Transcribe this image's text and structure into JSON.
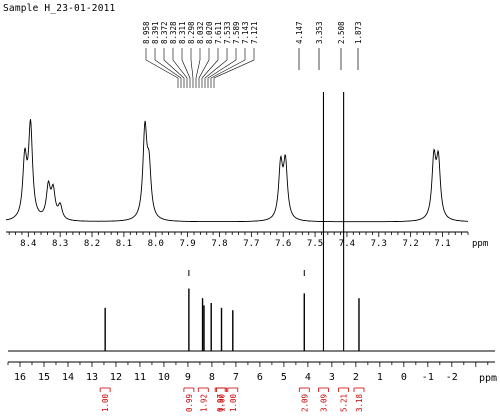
{
  "chart_data": [
    {
      "type": "line",
      "title": "Sample H_23-01-2011",
      "panel": "expansion",
      "xlabel": "ppm",
      "xlim": [
        8.47,
        7.02
      ],
      "x_reversed": true,
      "x_ticks": [
        "8.4",
        "8.3",
        "8.2",
        "8.1",
        "8.0",
        "7.9",
        "7.8",
        "7.7",
        "7.6",
        "7.5",
        "7.4",
        "7.3",
        "7.2",
        "7.1"
      ],
      "tick_values": [
        8.4,
        8.3,
        8.2,
        8.1,
        8.0,
        7.9,
        7.8,
        7.7,
        7.6,
        7.5,
        7.4,
        7.3,
        7.2,
        7.1
      ],
      "peaks": [
        {
          "x": 8.411,
          "h": 0.55
        },
        {
          "x": 8.393,
          "h": 0.86
        },
        {
          "x": 8.337,
          "h": 0.3
        },
        {
          "x": 8.322,
          "h": 0.26
        },
        {
          "x": 8.3,
          "h": 0.13
        },
        {
          "x": 8.034,
          "h": 0.82
        },
        {
          "x": 8.021,
          "h": 0.45
        },
        {
          "x": 7.608,
          "h": 0.5
        },
        {
          "x": 7.593,
          "h": 0.52
        },
        {
          "x": 7.127,
          "h": 0.55
        },
        {
          "x": 7.113,
          "h": 0.53
        }
      ],
      "peak_labels": [
        "8.958",
        "8.391",
        "8.372",
        "8.328",
        "8.311",
        "8.298",
        "8.032",
        "8.020",
        "7.611",
        "7.533",
        "7.589",
        "7.143",
        "7.121",
        "4.147",
        "3.353",
        "2.508",
        "1.873"
      ],
      "peak_label_targets": [
        8.958,
        8.391,
        8.372,
        8.328,
        8.311,
        8.298,
        8.032,
        8.02,
        7.611,
        7.533,
        7.589,
        7.143,
        7.121,
        4.147,
        3.353,
        2.508,
        1.873
      ]
    },
    {
      "type": "line",
      "panel": "full",
      "xlabel": "ppm",
      "xlim": [
        16.5,
        -3.8
      ],
      "x_reversed": true,
      "x_ticks": [
        "16",
        "15",
        "14",
        "13",
        "12",
        "11",
        "10",
        "9",
        "8",
        "7",
        "6",
        "5",
        "4",
        "3",
        "2",
        "1",
        "0",
        "-1",
        "-2"
      ],
      "tick_values": [
        16,
        15,
        14,
        13,
        12,
        11,
        10,
        9,
        8,
        7,
        6,
        5,
        4,
        3,
        2,
        1,
        0,
        -1,
        -2
      ],
      "peaks": [
        {
          "x": 12.45,
          "h": 0.36
        },
        {
          "x": 8.96,
          "h": 0.52
        },
        {
          "x": 8.39,
          "h": 0.44
        },
        {
          "x": 8.33,
          "h": 0.38
        },
        {
          "x": 8.03,
          "h": 0.4
        },
        {
          "x": 7.6,
          "h": 0.36
        },
        {
          "x": 7.13,
          "h": 0.34
        },
        {
          "x": 4.15,
          "h": 0.48
        },
        {
          "x": 3.35,
          "h": 1.0
        },
        {
          "x": 2.51,
          "h": 1.0
        },
        {
          "x": 1.87,
          "h": 0.44
        }
      ],
      "marker_ticks": [
        8.96,
        4.15
      ],
      "integrals": [
        {
          "x": 12.45,
          "value": "1.00"
        },
        {
          "x": 8.96,
          "value": "0.99"
        },
        {
          "x": 8.36,
          "value": "1.92"
        },
        {
          "x": 8.03,
          "value": "0.97"
        },
        {
          "x": 7.6,
          "value": "1.00"
        },
        {
          "x": 7.13,
          "value": "1.00"
        },
        {
          "x": 4.15,
          "value": "2.09"
        },
        {
          "x": 3.35,
          "value": "3.09"
        },
        {
          "x": 2.51,
          "value": "5.21"
        },
        {
          "x": 1.87,
          "value": "3.18"
        }
      ]
    }
  ]
}
